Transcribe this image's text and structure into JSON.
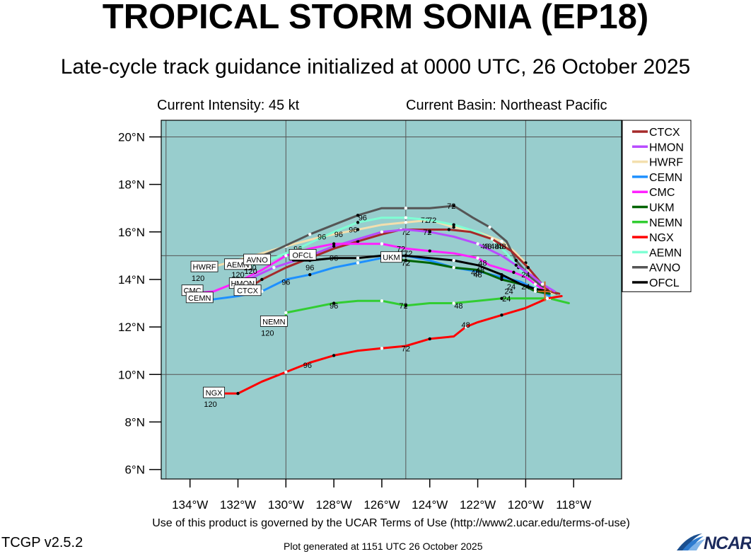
{
  "header": {
    "title": "TROPICAL STORM SONIA (EP18)",
    "subtitle": "Late-cycle track guidance initialized at 0000 UTC, 26 October 2025",
    "intensity": "Current Intensity: 45 kt",
    "basin": "Current Basin: Northeast Pacific"
  },
  "footer": {
    "terms": "Use of this product is governed by the UCAR Terms of Use (http://www2.ucar.edu/terms-of-use)",
    "version": "TCGP v2.5.2",
    "generated": "Plot generated at 1151 UTC   26 October 2025",
    "logo_text": "NCAR"
  },
  "colors": {
    "ocean": "#98cdcd",
    "grid": "#555555",
    "current_position_marker": "#d2691e"
  },
  "map": {
    "lon_range": [
      -135.2,
      -116.0
    ],
    "lat_range": [
      5.6,
      20.7
    ],
    "lon_ticks": [
      {
        "value": -134,
        "label": "134°W"
      },
      {
        "value": -132,
        "label": "132°W"
      },
      {
        "value": -130,
        "label": "130°W"
      },
      {
        "value": -128,
        "label": "128°W"
      },
      {
        "value": -126,
        "label": "126°W"
      },
      {
        "value": -124,
        "label": "124°W"
      },
      {
        "value": -122,
        "label": "122°W"
      },
      {
        "value": -120,
        "label": "120°W"
      },
      {
        "value": -118,
        "label": "118°W"
      }
    ],
    "lat_ticks": [
      {
        "value": 6,
        "label": "6°N"
      },
      {
        "value": 8,
        "label": "8°N"
      },
      {
        "value": 10,
        "label": "10°N"
      },
      {
        "value": 12,
        "label": "12°N"
      },
      {
        "value": 14,
        "label": "14°N"
      },
      {
        "value": 16,
        "label": "16°N"
      },
      {
        "value": 18,
        "label": "18°N"
      },
      {
        "value": 20,
        "label": "20°N"
      }
    ],
    "gridlines": {
      "lon": [
        -135,
        -130,
        -125,
        -120
      ],
      "lat": [
        10,
        15,
        20
      ]
    },
    "current_position": {
      "lon": -119.2,
      "lat": 13.5
    }
  },
  "legend": [
    {
      "name": "CTCX",
      "color": "#a52a2a"
    },
    {
      "name": "HMON",
      "color": "#b84cff"
    },
    {
      "name": "HWRF",
      "color": "#f3dfae"
    },
    {
      "name": "CEMN",
      "color": "#1e90ff"
    },
    {
      "name": "CMC",
      "color": "#ff22ff"
    },
    {
      "name": "UKM",
      "color": "#006400"
    },
    {
      "name": "NEMN",
      "color": "#32cd32"
    },
    {
      "name": "NGX",
      "color": "#ff0000"
    },
    {
      "name": "AEMN",
      "color": "#7fffd4"
    },
    {
      "name": "AVNO",
      "color": "#555555"
    },
    {
      "name": "OFCL",
      "color": "#000000"
    }
  ],
  "tracks": [
    {
      "name": "HWRF",
      "color": "#f3dfae",
      "points": [
        [
          -118.8,
          13.4
        ],
        [
          -119.3,
          13.5
        ],
        [
          -119.6,
          13.8
        ],
        [
          -120.0,
          14.7
        ],
        [
          -120.5,
          15.2
        ],
        [
          -121.0,
          15.6
        ],
        [
          -122.0,
          16.0
        ],
        [
          -123.0,
          16.2
        ],
        [
          -124.0,
          16.5
        ],
        [
          -125.0,
          16.4
        ],
        [
          -126.0,
          16.3
        ],
        [
          -127.0,
          16.1
        ],
        [
          -128.5,
          15.8
        ],
        [
          -130.0,
          15.4
        ],
        [
          -131.0,
          15.1
        ],
        [
          -133.5,
          14.4
        ]
      ],
      "labels": [
        {
          "text": "24",
          "lon": -120.7,
          "lat": 13.5
        },
        {
          "text": "48",
          "lon": -121.7,
          "lat": 15.4
        },
        {
          "text": "72",
          "lon": -124.2,
          "lat": 16.5
        },
        {
          "text": "96",
          "lon": -127.2,
          "lat": 16.1
        }
      ]
    },
    {
      "name": "AEMN",
      "color": "#7fffd4",
      "points": [
        [
          -118.9,
          13.3
        ],
        [
          -119.3,
          13.5
        ],
        [
          -119.8,
          13.9
        ],
        [
          -120.3,
          14.5
        ],
        [
          -120.8,
          15.1
        ],
        [
          -121.3,
          15.6
        ],
        [
          -122.0,
          16.0
        ],
        [
          -123.0,
          16.3
        ],
        [
          -124.0,
          16.5
        ],
        [
          -125.0,
          16.6
        ],
        [
          -126.0,
          16.6
        ],
        [
          -127.0,
          16.4
        ],
        [
          -128.0,
          16.0
        ],
        [
          -129.5,
          15.3
        ],
        [
          -131.0,
          14.7
        ],
        [
          -132.0,
          14.5
        ]
      ],
      "labels": [
        {
          "text": "48",
          "lon": -121.3,
          "lat": 15.4
        },
        {
          "text": "72",
          "lon": -123.9,
          "lat": 16.5
        },
        {
          "text": "96",
          "lon": -128.5,
          "lat": 15.8
        },
        {
          "text": "120",
          "lon": -132.0,
          "lat": 14.2
        }
      ]
    },
    {
      "name": "AVNO",
      "color": "#555555",
      "points": [
        [
          -118.7,
          13.4
        ],
        [
          -119.2,
          13.6
        ],
        [
          -119.8,
          14.1
        ],
        [
          -120.4,
          14.8
        ],
        [
          -120.8,
          15.6
        ],
        [
          -121.5,
          16.2
        ],
        [
          -122.2,
          16.6
        ],
        [
          -123.0,
          17.1
        ],
        [
          -124.0,
          17.0
        ],
        [
          -125.0,
          17.0
        ],
        [
          -126.0,
          17.0
        ],
        [
          -127.0,
          16.7
        ],
        [
          -128.0,
          16.3
        ],
        [
          -129.0,
          15.9
        ],
        [
          -130.5,
          15.2
        ],
        [
          -131.5,
          14.8
        ]
      ],
      "labels": [
        {
          "text": "48",
          "lon": -121.1,
          "lat": 15.4
        },
        {
          "text": "72",
          "lon": -123.1,
          "lat": 17.1
        },
        {
          "text": "96",
          "lon": -126.8,
          "lat": 16.6
        },
        {
          "text": "120",
          "lon": -131.5,
          "lat": 14.5
        }
      ]
    },
    {
      "name": "CTCX",
      "color": "#a52a2a",
      "points": [
        [
          -118.6,
          13.4
        ],
        [
          -119.0,
          13.5
        ],
        [
          -119.4,
          13.9
        ],
        [
          -119.9,
          14.5
        ],
        [
          -120.6,
          15.2
        ],
        [
          -121.4,
          15.7
        ],
        [
          -122.3,
          16.0
        ],
        [
          -123.2,
          16.1
        ],
        [
          -124.2,
          16.1
        ],
        [
          -125.2,
          16.1
        ],
        [
          -126.0,
          15.9
        ],
        [
          -127.0,
          15.6
        ],
        [
          -128.0,
          15.3
        ],
        [
          -129.0,
          14.9
        ],
        [
          -130.0,
          14.5
        ],
        [
          -131.0,
          14.0
        ],
        [
          -131.8,
          13.5
        ]
      ],
      "labels": [
        {
          "text": "48",
          "lon": -121.0,
          "lat": 15.4
        },
        {
          "text": "72",
          "lon": -125.0,
          "lat": 16.0
        },
        {
          "text": "96",
          "lon": -129.0,
          "lat": 14.5
        }
      ]
    },
    {
      "name": "HMON",
      "color": "#b84cff",
      "points": [
        [
          -118.8,
          13.5
        ],
        [
          -119.3,
          13.8
        ],
        [
          -119.8,
          14.2
        ],
        [
          -120.4,
          14.6
        ],
        [
          -121.0,
          15.0
        ],
        [
          -122.0,
          15.5
        ],
        [
          -123.0,
          15.8
        ],
        [
          -124.0,
          16.0
        ],
        [
          -125.0,
          16.1
        ],
        [
          -126.0,
          16.0
        ],
        [
          -127.0,
          15.7
        ],
        [
          -128.0,
          15.4
        ],
        [
          -129.0,
          15.0
        ],
        [
          -130.5,
          14.5
        ],
        [
          -132.0,
          13.8
        ]
      ],
      "labels": [
        {
          "text": "48",
          "lon": -121.6,
          "lat": 15.4
        },
        {
          "text": "72",
          "lon": -124.1,
          "lat": 16.0
        },
        {
          "text": "96",
          "lon": -127.8,
          "lat": 15.9
        }
      ]
    },
    {
      "name": "CMC",
      "color": "#ff22ff",
      "points": [
        [
          -119.0,
          13.4
        ],
        [
          -119.6,
          13.8
        ],
        [
          -120.0,
          14.1
        ],
        [
          -120.5,
          14.3
        ],
        [
          -121.5,
          14.6
        ],
        [
          -122.0,
          14.9
        ],
        [
          -123.0,
          15.1
        ],
        [
          -124.0,
          15.2
        ],
        [
          -125.0,
          15.3
        ],
        [
          -126.0,
          15.5
        ],
        [
          -127.0,
          15.5
        ],
        [
          -128.0,
          15.5
        ],
        [
          -129.0,
          15.3
        ],
        [
          -130.0,
          15.0
        ],
        [
          -131.0,
          14.4
        ],
        [
          -132.0,
          13.9
        ],
        [
          -133.0,
          13.5
        ],
        [
          -134.0,
          13.4
        ]
      ],
      "labels": [
        {
          "text": "24",
          "lon": -120.0,
          "lat": 14.2
        },
        {
          "text": "48",
          "lon": -121.8,
          "lat": 14.7
        },
        {
          "text": "72",
          "lon": -125.2,
          "lat": 15.3
        },
        {
          "text": "96",
          "lon": -129.5,
          "lat": 15.3
        }
      ]
    },
    {
      "name": "CEMN",
      "color": "#1e90ff",
      "points": [
        [
          -119.0,
          13.3
        ],
        [
          -119.6,
          13.6
        ],
        [
          -120.2,
          13.9
        ],
        [
          -121.0,
          14.1
        ],
        [
          -121.8,
          14.3
        ],
        [
          -123.0,
          14.5
        ],
        [
          -124.0,
          14.8
        ],
        [
          -125.0,
          15.0
        ],
        [
          -126.0,
          14.9
        ],
        [
          -127.0,
          14.7
        ],
        [
          -128.0,
          14.5
        ],
        [
          -129.0,
          14.2
        ],
        [
          -130.0,
          14.0
        ],
        [
          -131.0,
          13.5
        ],
        [
          -132.0,
          13.3
        ],
        [
          -133.5,
          13.1
        ]
      ],
      "labels": [
        {
          "text": "48",
          "lon": -122.0,
          "lat": 14.2
        },
        {
          "text": "72",
          "lon": -125.0,
          "lat": 14.7
        },
        {
          "text": "96",
          "lon": -130.0,
          "lat": 13.9
        }
      ]
    },
    {
      "name": "UKM",
      "color": "#006400",
      "points": [
        [
          -119.0,
          13.4
        ],
        [
          -119.6,
          13.5
        ],
        [
          -120.2,
          13.8
        ],
        [
          -121.0,
          14.0
        ],
        [
          -122.0,
          14.4
        ],
        [
          -123.0,
          14.5
        ],
        [
          -124.0,
          14.7
        ],
        [
          -125.0,
          14.8
        ],
        [
          -126.0,
          14.9
        ]
      ],
      "labels": [
        {
          "text": "24",
          "lon": -120.6,
          "lat": 13.7
        },
        {
          "text": "48",
          "lon": -122.1,
          "lat": 14.3
        },
        {
          "text": "72",
          "lon": -125.0,
          "lat": 14.7
        }
      ]
    },
    {
      "name": "NEMN",
      "color": "#32cd32",
      "points": [
        [
          -118.2,
          13.0
        ],
        [
          -119.0,
          13.2
        ],
        [
          -120.0,
          13.2
        ],
        [
          -121.0,
          13.2
        ],
        [
          -122.0,
          13.1
        ],
        [
          -123.0,
          13.0
        ],
        [
          -124.0,
          13.0
        ],
        [
          -125.0,
          12.9
        ],
        [
          -125.5,
          13.0
        ],
        [
          -126.0,
          13.1
        ],
        [
          -127.0,
          13.1
        ],
        [
          -128.0,
          13.0
        ],
        [
          -129.0,
          12.8
        ],
        [
          -130.0,
          12.6
        ],
        [
          -130.0,
          12.2
        ]
      ],
      "labels": [
        {
          "text": "24",
          "lon": -120.8,
          "lat": 13.2
        },
        {
          "text": "48",
          "lon": -122.8,
          "lat": 12.9
        },
        {
          "text": "72",
          "lon": -125.1,
          "lat": 12.9
        },
        {
          "text": "96",
          "lon": -128.0,
          "lat": 12.9
        }
      ]
    },
    {
      "name": "NGX",
      "color": "#ff0000",
      "points": [
        [
          -118.5,
          13.3
        ],
        [
          -119.1,
          13.2
        ],
        [
          -120.0,
          12.8
        ],
        [
          -121.0,
          12.5
        ],
        [
          -122.0,
          12.2
        ],
        [
          -122.5,
          12.0
        ],
        [
          -123.0,
          11.6
        ],
        [
          -124.0,
          11.5
        ],
        [
          -125.0,
          11.2
        ],
        [
          -126.0,
          11.1
        ],
        [
          -127.0,
          11.0
        ],
        [
          -128.0,
          10.8
        ],
        [
          -129.0,
          10.5
        ],
        [
          -130.0,
          10.1
        ],
        [
          -131.0,
          9.7
        ],
        [
          -132.0,
          9.2
        ],
        [
          -133.0,
          9.2
        ]
      ],
      "labels": [
        {
          "text": "48",
          "lon": -122.5,
          "lat": 12.1
        },
        {
          "text": "72",
          "lon": -125.0,
          "lat": 11.1
        },
        {
          "text": "96",
          "lon": -129.1,
          "lat": 10.4
        }
      ]
    },
    {
      "name": "OFCL",
      "color": "#000000",
      "points": [
        [
          -119.0,
          13.5
        ],
        [
          -119.6,
          13.6
        ],
        [
          -120.2,
          13.8
        ],
        [
          -121.0,
          14.2
        ],
        [
          -122.0,
          14.6
        ],
        [
          -123.0,
          14.8
        ],
        [
          -124.0,
          14.9
        ],
        [
          -125.0,
          15.0
        ],
        [
          -126.0,
          15.0
        ],
        [
          -127.0,
          14.9
        ],
        [
          -128.0,
          14.9
        ],
        [
          -129.0,
          14.8
        ],
        [
          -129.7,
          14.8
        ]
      ],
      "labels": [
        {
          "text": "24",
          "lon": -120.0,
          "lat": 13.7
        },
        {
          "text": "48",
          "lon": -121.9,
          "lat": 14.4
        },
        {
          "text": "72",
          "lon": -124.9,
          "lat": 15.1
        },
        {
          "text": "96",
          "lon": -128.0,
          "lat": 14.9
        }
      ]
    }
  ],
  "endpoint_labels": [
    {
      "text": "HWRF",
      "lon": -133.4,
      "lat": 14.5,
      "sub": "120"
    },
    {
      "text": "AEMN",
      "lon": -132.0,
      "lat": 14.6,
      "sub": ""
    },
    {
      "text": "AVNO",
      "lon": -131.2,
      "lat": 14.8,
      "sub": "120"
    },
    {
      "text": "CMC",
      "lon": -133.9,
      "lat": 13.5,
      "sub": ""
    },
    {
      "text": "CEMN",
      "lon": -133.6,
      "lat": 13.2,
      "sub": ""
    },
    {
      "text": "HMON",
      "lon": -131.8,
      "lat": 13.8,
      "sub": ""
    },
    {
      "text": "CTCX",
      "lon": -131.6,
      "lat": 13.5,
      "sub": ""
    },
    {
      "text": "NEMN",
      "lon": -130.5,
      "lat": 12.2,
      "sub": "120"
    },
    {
      "text": "NGX",
      "lon": -133.0,
      "lat": 9.2,
      "sub": "120"
    },
    {
      "text": "OFCL",
      "lon": -129.3,
      "lat": 15.0,
      "sub": ""
    },
    {
      "text": "UKM",
      "lon": -125.6,
      "lat": 14.9,
      "sub": ""
    }
  ]
}
